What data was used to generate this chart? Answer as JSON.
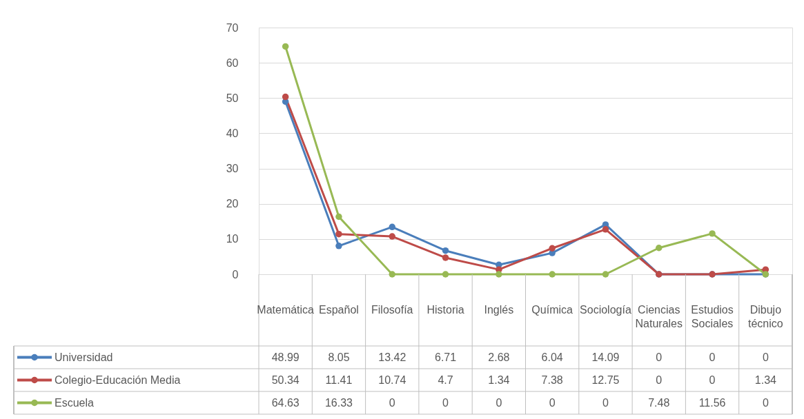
{
  "chart_data": {
    "type": "line",
    "categories": [
      "Matemática",
      "Español",
      "Filosofía",
      "Historia",
      "Inglés",
      "Química",
      "Sociología",
      "Ciencias Naturales",
      "Estudios Sociales",
      "Dibujo técnico"
    ],
    "series": [
      {
        "name": "Universidad",
        "color": "#4a7ebb",
        "values": [
          48.99,
          8.05,
          13.42,
          6.71,
          2.68,
          6.04,
          14.09,
          0,
          0,
          0
        ]
      },
      {
        "name": "Colegio-Educación Media",
        "color": "#be4b48",
        "values": [
          50.34,
          11.41,
          10.74,
          4.7,
          1.34,
          7.38,
          12.75,
          0,
          0,
          1.34
        ]
      },
      {
        "name": "Escuela",
        "color": "#98b954",
        "values": [
          64.63,
          16.33,
          0,
          0,
          0,
          0,
          0,
          7.48,
          11.56,
          0
        ]
      }
    ],
    "ylim": [
      0,
      70
    ],
    "yticks": [
      0,
      10,
      20,
      30,
      40,
      50,
      60,
      70
    ],
    "grid": "y",
    "legend": "bottom left",
    "marker": "circle",
    "data_labels": true
  }
}
